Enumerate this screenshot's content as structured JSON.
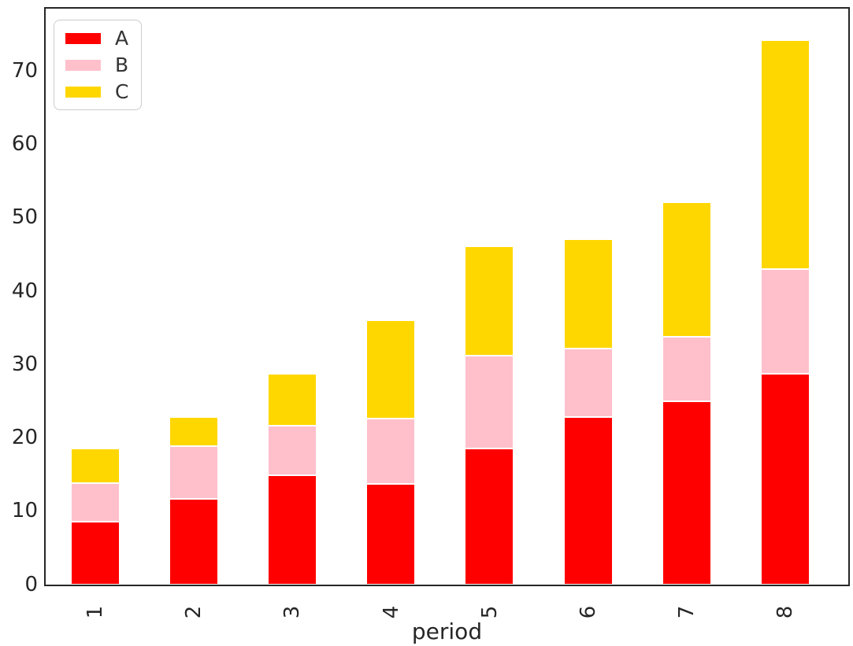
{
  "chart_data": {
    "type": "bar",
    "stacked": true,
    "title": "",
    "xlabel": "period",
    "ylabel": "",
    "categories": [
      "1",
      "2",
      "3",
      "4",
      "5",
      "6",
      "7",
      "8"
    ],
    "series": [
      {
        "name": "A",
        "color": "#ff0000",
        "values": [
          8.6,
          11.7,
          14.9,
          13.7,
          18.6,
          22.8,
          25.0,
          28.7
        ]
      },
      {
        "name": "B",
        "color": "#ffc0cb",
        "values": [
          5.2,
          7.2,
          6.8,
          8.9,
          12.6,
          9.4,
          8.8,
          14.3
        ]
      },
      {
        "name": "C",
        "color": "#ffd700",
        "values": [
          4.8,
          3.9,
          7.0,
          13.4,
          14.9,
          14.9,
          18.3,
          31.2
        ]
      }
    ],
    "totals": [
      18.6,
      22.8,
      28.7,
      36.0,
      46.1,
      47.1,
      52.1,
      74.2
    ],
    "ylim": [
      0,
      78.4
    ],
    "yticks": [
      0,
      10,
      20,
      30,
      40,
      50,
      60,
      70
    ],
    "xtick_rotation_deg": 90,
    "grid": false,
    "legend_position": "upper left",
    "colors": {
      "background": "#ffffff",
      "spine": "#262626",
      "tick_text": "#262626",
      "legend_border": "#cccccc",
      "bar_edge": "#ffffff"
    }
  }
}
